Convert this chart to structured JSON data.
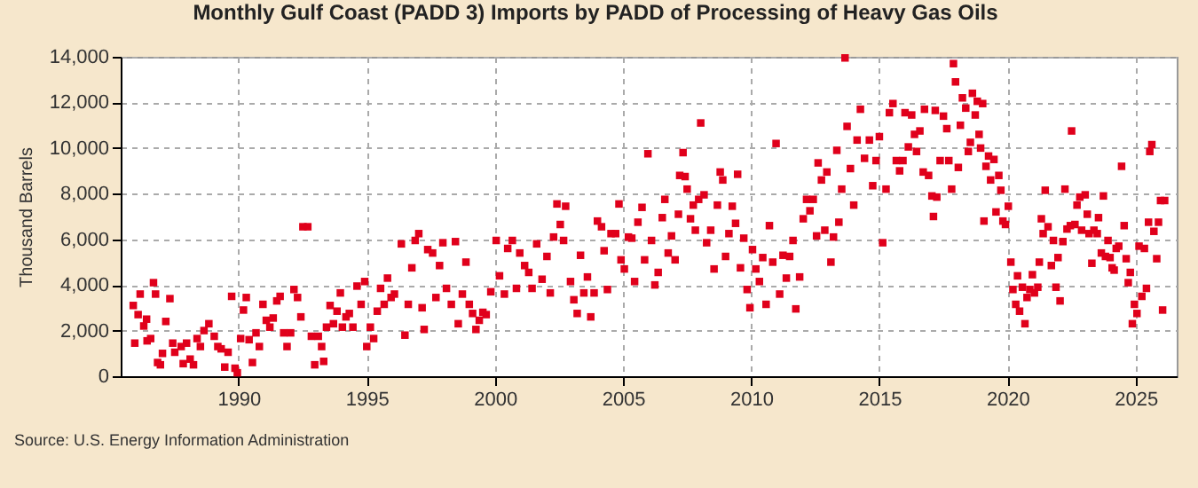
{
  "chart_data": {
    "type": "scatter",
    "title": "Monthly Gulf Coast (PADD 3) Imports by PADD of Processing of Heavy Gas Oils",
    "ylabel": "Thousand Barrels",
    "annotations": [
      "Source: U.S. Energy Information Administration"
    ],
    "color": "#e0001b",
    "marker": "square",
    "grid": true,
    "xlim": [
      1985.4,
      2026.6
    ],
    "xticks": [
      1990,
      1995,
      2000,
      2005,
      2010,
      2015,
      2020,
      2025
    ],
    "ylim": [
      0,
      14000
    ],
    "yticks": [
      0,
      {
        "value": 2000,
        "label": "2,000"
      },
      {
        "value": 4000,
        "label": "4,000"
      },
      {
        "value": 6000,
        "label": "6,000"
      },
      {
        "value": 8000,
        "label": "8,000"
      },
      {
        "value": 10000,
        "label": "10,000"
      },
      {
        "value": 12000,
        "label": "12,000"
      },
      {
        "value": 14000,
        "label": "14,000"
      }
    ],
    "x": [
      1985.89,
      1985.95,
      1986.08,
      1986.16,
      1986.3,
      1986.41,
      1986.43,
      1986.57,
      1986.68,
      1986.76,
      1986.84,
      1986.95,
      1987.03,
      1987.16,
      1987.32,
      1987.43,
      1987.51,
      1987.76,
      1987.84,
      1987.97,
      1988.11,
      1988.24,
      1988.38,
      1988.51,
      1988.65,
      1988.84,
      1989.05,
      1989.19,
      1989.32,
      1989.46,
      1989.59,
      1989.73,
      1989.86,
      1989.95,
      1990.08,
      1990.19,
      1990.3,
      1990.41,
      1990.54,
      1990.68,
      1990.81,
      1990.95,
      1991.08,
      1991.22,
      1991.35,
      1991.49,
      1991.62,
      1991.76,
      1991.89,
      1992.03,
      1992.16,
      1992.3,
      1992.43,
      1992.51,
      1992.7,
      1992.84,
      1992.97,
      1993.11,
      1993.24,
      1993.32,
      1993.43,
      1993.57,
      1993.7,
      1993.84,
      1993.97,
      1994.05,
      1994.19,
      1994.32,
      1994.46,
      1994.62,
      1994.78,
      1994.92,
      1995.0,
      1995.14,
      1995.27,
      1995.41,
      1995.54,
      1995.68,
      1995.81,
      1995.95,
      1996.08,
      1996.35,
      1996.49,
      1996.62,
      1996.76,
      1996.89,
      1997.03,
      1997.16,
      1997.24,
      1997.38,
      1997.57,
      1997.7,
      1997.84,
      1997.97,
      1998.11,
      1998.3,
      1998.46,
      1998.57,
      1998.73,
      1998.87,
      1999.0,
      1999.13,
      1999.26,
      1999.39,
      1999.53,
      1999.66,
      1999.84,
      2000.05,
      2000.18,
      2000.37,
      2000.5,
      2000.68,
      2000.84,
      2000.97,
      2001.16,
      2001.32,
      2001.45,
      2001.63,
      2001.84,
      2002.03,
      2002.16,
      2002.29,
      2002.42,
      2002.55,
      2002.68,
      2002.76,
      2002.95,
      2003.08,
      2003.21,
      2003.34,
      2003.47,
      2003.61,
      2003.74,
      2003.87,
      2004.0,
      2004.16,
      2004.26,
      2004.39,
      2004.53,
      2004.71,
      2004.84,
      2004.92,
      2005.05,
      2005.21,
      2005.34,
      2005.45,
      2005.58,
      2005.74,
      2005.84,
      2005.97,
      2006.11,
      2006.24,
      2006.37,
      2006.53,
      2006.63,
      2006.76,
      2006.89,
      2007.03,
      2007.16,
      2007.21,
      2007.34,
      2007.42,
      2007.5,
      2007.63,
      2007.74,
      2007.82,
      2007.95,
      2008.03,
      2008.16,
      2008.26,
      2008.42,
      2008.55,
      2008.68,
      2008.79,
      2008.89,
      2009.0,
      2009.13,
      2009.26,
      2009.39,
      2009.47,
      2009.58,
      2009.71,
      2009.84,
      2009.95,
      2010.05,
      2010.18,
      2010.32,
      2010.45,
      2010.58,
      2010.71,
      2010.84,
      2010.97,
      2011.11,
      2011.24,
      2011.37,
      2011.5,
      2011.63,
      2011.74,
      2011.89,
      2012.03,
      2012.16,
      2012.29,
      2012.42,
      2012.55,
      2012.61,
      2012.74,
      2012.87,
      2012.95,
      2013.11,
      2013.21,
      2013.34,
      2013.42,
      2013.53,
      2013.66,
      2013.74,
      2013.87,
      2014.0,
      2014.13,
      2014.26,
      2014.42,
      2014.61,
      2014.74,
      2014.87,
      2015.0,
      2015.13,
      2015.26,
      2015.39,
      2015.53,
      2015.66,
      2015.79,
      2015.92,
      2016.0,
      2016.13,
      2016.26,
      2016.37,
      2016.45,
      2016.58,
      2016.71,
      2016.76,
      2016.92,
      2017.05,
      2017.11,
      2017.18,
      2017.24,
      2017.37,
      2017.5,
      2017.63,
      2017.71,
      2017.82,
      2017.89,
      2017.97,
      2018.08,
      2018.16,
      2018.24,
      2018.37,
      2018.47,
      2018.55,
      2018.63,
      2018.74,
      2018.82,
      2018.89,
      2018.95,
      2019.03,
      2019.08,
      2019.16,
      2019.26,
      2019.34,
      2019.47,
      2019.55,
      2019.66,
      2019.74,
      2019.82,
      2019.92,
      2020.03,
      2020.13,
      2020.21,
      2020.32,
      2020.39,
      2020.47,
      2020.58,
      2020.68,
      2020.76,
      2020.87,
      2020.97,
      2021.05,
      2021.18,
      2021.24,
      2021.32,
      2021.39,
      2021.47,
      2021.58,
      2021.71,
      2021.79,
      2021.89,
      2021.97,
      2022.05,
      2022.16,
      2022.24,
      2022.32,
      2022.45,
      2022.5,
      2022.63,
      2022.71,
      2022.82,
      2022.89,
      2023.03,
      2023.11,
      2023.18,
      2023.29,
      2023.37,
      2023.5,
      2023.55,
      2023.66,
      2023.74,
      2023.82,
      2023.92,
      2024.0,
      2024.08,
      2024.16,
      2024.24,
      2024.34,
      2024.45,
      2024.55,
      2024.63,
      2024.71,
      2024.79,
      2024.87,
      2024.95,
      2025.05,
      2025.13,
      2025.24,
      2025.34,
      2025.42,
      2025.5,
      2025.55,
      2025.63,
      2025.71,
      2025.82,
      2025.89,
      2025.97,
      2026.05,
      2026.13
    ],
    "values": [
      3100,
      1450,
      2700,
      3600,
      2200,
      2500,
      1550,
      1650,
      4100,
      3600,
      600,
      500,
      1000,
      2400,
      3400,
      1450,
      1050,
      1300,
      550,
      1450,
      750,
      500,
      1650,
      1300,
      2000,
      2300,
      1750,
      1300,
      1200,
      400,
      1050,
      3500,
      350,
      150,
      1650,
      2900,
      3450,
      1600,
      600,
      1900,
      1300,
      3150,
      2450,
      2150,
      2550,
      3300,
      3500,
      1900,
      1300,
      1900,
      3800,
      3450,
      2600,
      6550,
      6550,
      1750,
      500,
      1750,
      1300,
      650,
      2150,
      3100,
      2300,
      2850,
      3650,
      2150,
      2600,
      2750,
      2150,
      3950,
      3150,
      4150,
      1300,
      2150,
      1650,
      2850,
      3850,
      3150,
      4300,
      3450,
      3600,
      5800,
      1800,
      3150,
      4750,
      5950,
      6250,
      3000,
      2050,
      5550,
      5400,
      3450,
      4850,
      5850,
      3850,
      3150,
      5900,
      2300,
      3600,
      5000,
      3150,
      2750,
      2050,
      2450,
      2800,
      2700,
      3700,
      5950,
      4400,
      3600,
      5600,
      5950,
      3850,
      5400,
      4850,
      4550,
      3850,
      5800,
      4250,
      5250,
      3650,
      6100,
      7550,
      6650,
      5950,
      7450,
      4150,
      3350,
      2750,
      5300,
      3650,
      4350,
      2600,
      3650,
      6800,
      6550,
      5500,
      3800,
      6250,
      6250,
      7550,
      5100,
      4700,
      6100,
      6050,
      4150,
      6750,
      7400,
      5100,
      9750,
      5950,
      4000,
      4550,
      6950,
      7750,
      5400,
      6150,
      5100,
      7100,
      8800,
      9800,
      8750,
      8200,
      6900,
      7500,
      6400,
      7750,
      11100,
      7950,
      5850,
      6400,
      4700,
      7500,
      8950,
      8600,
      5250,
      6250,
      7450,
      6700,
      8850,
      4750,
      6050,
      3800,
      3000,
      5550,
      4700,
      4150,
      5200,
      3150,
      6600,
      5000,
      10200,
      3600,
      5300,
      4300,
      5250,
      5950,
      2950,
      4350,
      6900,
      7750,
      7250,
      7750,
      6150,
      9350,
      8600,
      6400,
      8950,
      5000,
      6100,
      9900,
      6750,
      8200,
      13950,
      10950,
      9100,
      7500,
      10350,
      11700,
      9550,
      10350,
      8350,
      9450,
      10500,
      5850,
      8200,
      11550,
      11950,
      9450,
      9000,
      9450,
      11550,
      10050,
      11450,
      10600,
      9850,
      10750,
      8950,
      11700,
      8800,
      7900,
      7000,
      11650,
      7850,
      9450,
      11400,
      10850,
      9450,
      8200,
      13700,
      12900,
      9150,
      11000,
      12200,
      11750,
      9850,
      10250,
      12400,
      11450,
      12050,
      10600,
      10000,
      11950,
      6800,
      9200,
      9650,
      8600,
      9500,
      7200,
      8800,
      8150,
      6800,
      6650,
      7450,
      5000,
      3800,
      3150,
      4400,
      2850,
      3900,
      2300,
      3450,
      3800,
      4450,
      3650,
      3900,
      5000,
      6900,
      6250,
      8150,
      6550,
      4850,
      5950,
      3900,
      5200,
      3300,
      5900,
      8200,
      6450,
      6600,
      10750,
      6650,
      7500,
      7850,
      6400,
      7950,
      7100,
      6250,
      4950,
      6400,
      6250,
      6950,
      5400,
      7900,
      5250,
      5950,
      5200,
      4750,
      4650,
      5600,
      5700,
      9200,
      6600,
      5150,
      4100,
      4550,
      2300,
      3150,
      2750,
      5700,
      3500,
      5600,
      3850,
      6750,
      9850,
      10150,
      6350,
      5150,
      6750,
      7700,
      2900,
      7700
    ]
  }
}
